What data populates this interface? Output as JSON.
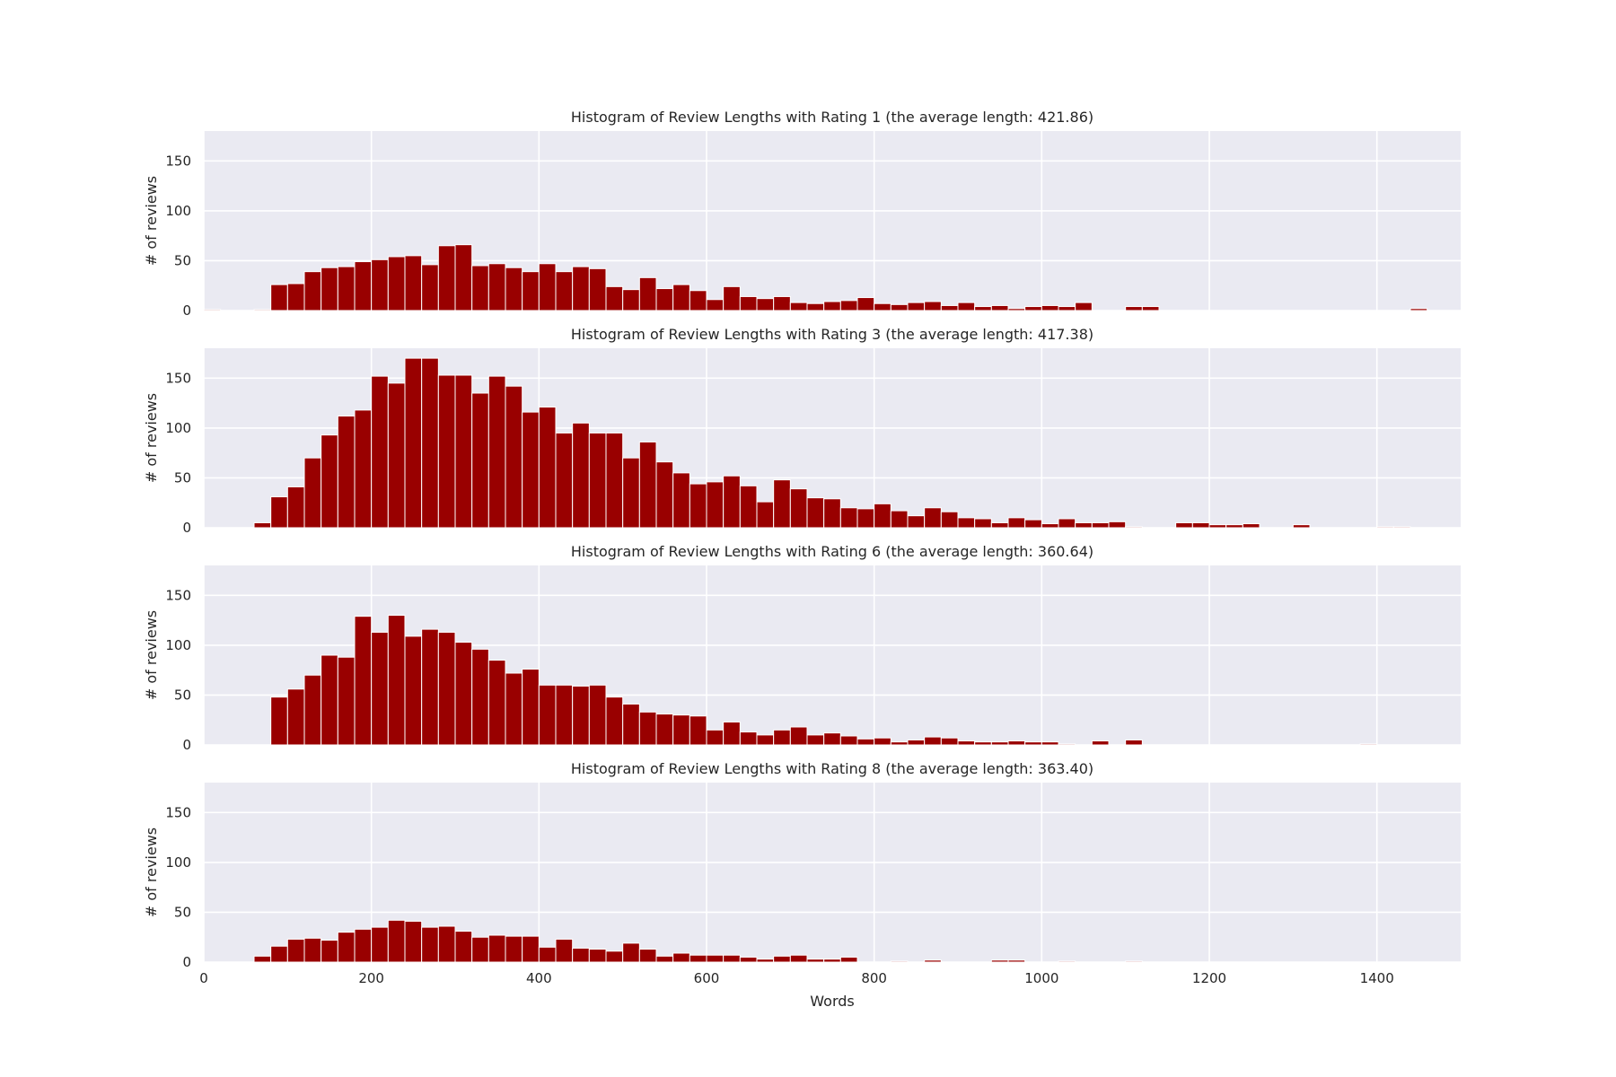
{
  "chart_data": [
    {
      "type": "bar",
      "title": "Histogram of Review Lengths with Rating 1 (the average length: 421.86)",
      "xlabel": "",
      "ylabel": "# of reviews",
      "xlim": [
        0,
        1500
      ],
      "ylim": [
        0,
        180
      ],
      "xticks": [
        "0",
        "200",
        "400",
        "600",
        "800",
        "1000",
        "1200",
        "1400"
      ],
      "yticks": [
        "0",
        "50",
        "100",
        "150"
      ],
      "bin_start": 0,
      "bin_width": 20,
      "values": [
        1,
        0,
        0,
        1,
        26,
        27,
        39,
        43,
        44,
        49,
        51,
        54,
        55,
        46,
        65,
        66,
        45,
        47,
        43,
        39,
        47,
        39,
        44,
        42,
        24,
        21,
        33,
        22,
        26,
        20,
        11,
        24,
        14,
        12,
        14,
        8,
        7,
        9,
        10,
        13,
        7,
        6,
        8,
        9,
        5,
        8,
        4,
        5,
        2,
        4,
        5,
        4,
        8,
        0,
        0,
        4,
        4,
        0,
        0,
        0,
        0,
        0,
        0,
        0,
        0,
        0,
        0,
        0,
        0,
        0,
        0,
        0,
        2,
        0,
        0
      ]
    },
    {
      "type": "bar",
      "title": "Histogram of Review Lengths with Rating 3 (the average length: 417.38)",
      "xlabel": "",
      "ylabel": "# of reviews",
      "xlim": [
        0,
        1500
      ],
      "ylim": [
        0,
        180
      ],
      "xticks": [
        "0",
        "200",
        "400",
        "600",
        "800",
        "1000",
        "1200",
        "1400"
      ],
      "yticks": [
        "0",
        "50",
        "100",
        "150"
      ],
      "bin_start": 0,
      "bin_width": 20,
      "values": [
        0,
        0,
        0,
        5,
        31,
        41,
        70,
        93,
        112,
        118,
        152,
        145,
        170,
        170,
        153,
        153,
        135,
        152,
        142,
        116,
        121,
        95,
        105,
        95,
        95,
        70,
        86,
        66,
        55,
        44,
        46,
        52,
        42,
        26,
        48,
        39,
        30,
        29,
        20,
        19,
        24,
        17,
        12,
        20,
        16,
        10,
        9,
        5,
        10,
        8,
        4,
        9,
        5,
        5,
        6,
        1,
        0,
        0,
        5,
        5,
        3,
        3,
        4,
        0,
        0,
        3,
        0,
        0,
        0,
        0,
        1,
        1,
        0,
        0,
        0
      ]
    },
    {
      "type": "bar",
      "title": "Histogram of Review Lengths with Rating 6 (the average length: 360.64)",
      "xlabel": "",
      "ylabel": "# of reviews",
      "xlim": [
        0,
        1500
      ],
      "ylim": [
        0,
        180
      ],
      "xticks": [
        "0",
        "200",
        "400",
        "600",
        "800",
        "1000",
        "1200",
        "1400"
      ],
      "yticks": [
        "0",
        "50",
        "100",
        "150"
      ],
      "bin_start": 0,
      "bin_width": 20,
      "values": [
        0,
        0,
        0,
        0,
        48,
        56,
        70,
        90,
        88,
        129,
        113,
        130,
        109,
        116,
        113,
        103,
        96,
        85,
        72,
        76,
        60,
        60,
        59,
        60,
        48,
        41,
        33,
        31,
        30,
        29,
        15,
        23,
        13,
        10,
        15,
        18,
        10,
        12,
        9,
        6,
        7,
        3,
        5,
        8,
        7,
        4,
        3,
        3,
        4,
        3,
        3,
        1,
        0,
        4,
        0,
        5,
        0,
        0,
        0,
        0,
        0,
        0,
        0,
        0,
        0,
        0,
        0,
        0,
        0,
        1,
        0,
        0,
        0,
        0,
        0
      ]
    },
    {
      "type": "bar",
      "title": "Histogram of Review Lengths with Rating 8 (the average length: 363.40)",
      "xlabel": "Words",
      "ylabel": "# of reviews",
      "xlim": [
        0,
        1500
      ],
      "ylim": [
        0,
        180
      ],
      "xticks": [
        "0",
        "200",
        "400",
        "600",
        "800",
        "1000",
        "1200",
        "1400"
      ],
      "yticks": [
        "0",
        "50",
        "100",
        "150"
      ],
      "bin_start": 0,
      "bin_width": 20,
      "values": [
        0,
        0,
        0,
        6,
        16,
        23,
        24,
        22,
        30,
        33,
        35,
        42,
        41,
        35,
        36,
        31,
        25,
        27,
        26,
        26,
        15,
        23,
        14,
        13,
        11,
        19,
        13,
        6,
        9,
        7,
        7,
        7,
        5,
        3,
        6,
        7,
        3,
        3,
        5,
        0,
        0,
        1,
        0,
        2,
        0,
        0,
        0,
        2,
        2,
        0,
        0,
        1,
        0,
        0,
        0,
        1,
        0,
        0,
        0,
        0,
        0,
        0,
        0,
        0,
        0,
        0,
        0,
        0,
        0,
        0,
        0,
        0,
        0,
        0,
        0
      ]
    }
  ],
  "colors": {
    "bar": "#990000",
    "axes_background": "#eaeaf2",
    "grid": "#ffffff",
    "text": "#262626"
  }
}
